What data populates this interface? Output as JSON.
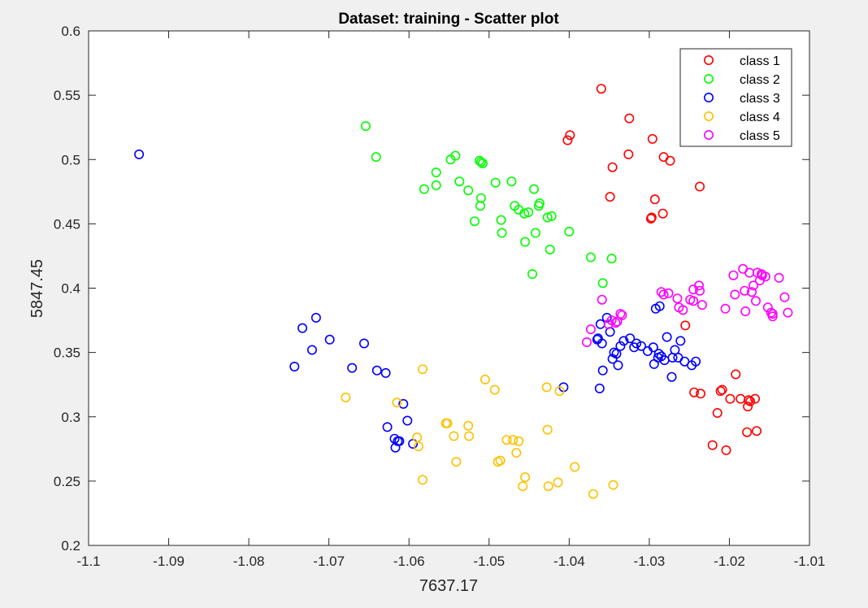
{
  "chart_data": {
    "type": "scatter",
    "title": "Dataset: training - Scatter plot",
    "xlabel": "7637.17",
    "ylabel": "5847.45",
    "xlim": [
      -1.1,
      -1.01
    ],
    "ylim": [
      0.2,
      0.6
    ],
    "xticks": [
      -1.1,
      -1.09,
      -1.08,
      -1.07,
      -1.06,
      -1.05,
      -1.04,
      -1.03,
      -1.02,
      -1.01
    ],
    "yticks": [
      0.2,
      0.25,
      0.3,
      0.35,
      0.4,
      0.45,
      0.5,
      0.55,
      0.6
    ],
    "xtick_labels": [
      "-1.1",
      "-1.09",
      "-1.08",
      "-1.07",
      "-1.06",
      "-1.05",
      "-1.04",
      "-1.03",
      "-1.02",
      "-1.01"
    ],
    "ytick_labels": [
      "0.2",
      "0.25",
      "0.3",
      "0.35",
      "0.4",
      "0.45",
      "0.5",
      "0.55",
      "0.6"
    ],
    "grid": false,
    "legend_position": "top-right",
    "series": [
      {
        "name": "class 1",
        "color": "#ff0000",
        "x": [
          -1.036,
          -1.0399,
          -1.0402,
          -1.0296,
          -1.0325,
          -1.0346,
          -1.0326,
          -1.0297,
          -1.0282,
          -1.0274,
          -1.0237,
          -1.0349,
          -1.0293,
          -1.0283,
          -1.0298,
          -1.0255,
          -1.0192,
          -1.0211,
          -1.0209,
          -1.0199,
          -1.0186,
          -1.0174,
          -1.0177,
          -1.0176,
          -1.0168,
          -1.0215,
          -1.0221,
          -1.0178,
          -1.0166,
          -1.0204,
          -1.0244,
          -1.0236
        ],
        "y": [
          0.555,
          0.519,
          0.515,
          0.516,
          0.532,
          0.494,
          0.504,
          0.455,
          0.502,
          0.499,
          0.479,
          0.471,
          0.469,
          0.458,
          0.454,
          0.371,
          0.333,
          0.32,
          0.321,
          0.314,
          0.314,
          0.312,
          0.308,
          0.313,
          0.314,
          0.303,
          0.278,
          0.288,
          0.289,
          0.274,
          0.319,
          0.318
        ]
      },
      {
        "name": "class 2",
        "color": "#00ff00",
        "x": [
          -1.0654,
          -1.0641,
          -1.0581,
          -1.0566,
          -1.0566,
          -1.0548,
          -1.0542,
          -1.0537,
          -1.0526,
          -1.0512,
          -1.051,
          -1.0508,
          -1.051,
          -1.0492,
          -1.0511,
          -1.0518,
          -1.0485,
          -1.0472,
          -1.0468,
          -1.0463,
          -1.0456,
          -1.0444,
          -1.0451,
          -1.0437,
          -1.0438,
          -1.0427,
          -1.0422,
          -1.0484,
          -1.0455,
          -1.0442,
          -1.0424,
          -1.0446,
          -1.04,
          -1.0373,
          -1.0358,
          -1.0347
        ],
        "y": [
          0.526,
          0.502,
          0.477,
          0.49,
          0.48,
          0.5,
          0.503,
          0.483,
          0.476,
          0.499,
          0.498,
          0.497,
          0.47,
          0.482,
          0.464,
          0.452,
          0.453,
          0.483,
          0.464,
          0.461,
          0.458,
          0.477,
          0.459,
          0.466,
          0.464,
          0.455,
          0.456,
          0.443,
          0.436,
          0.443,
          0.43,
          0.411,
          0.444,
          0.424,
          0.404,
          0.423
        ]
      },
      {
        "name": "class 3",
        "color": "#0000ff",
        "x": [
          -1.0937,
          -1.0716,
          -1.0733,
          -1.0721,
          -1.0743,
          -1.0699,
          -1.0656,
          -1.0671,
          -1.064,
          -1.0629,
          -1.0607,
          -1.0602,
          -1.0627,
          -1.0618,
          -1.0614,
          -1.0617,
          -1.0612,
          -1.0595,
          -1.0407,
          -1.0364,
          -1.0365,
          -1.0359,
          -1.0353,
          -1.0349,
          -1.0346,
          -1.0344,
          -1.0341,
          -1.0339,
          -1.0336,
          -1.0332,
          -1.0324,
          -1.0319,
          -1.0316,
          -1.031,
          -1.0302,
          -1.0295,
          -1.0289,
          -1.0285,
          -1.0281,
          -1.0278,
          -1.0271,
          -1.0268,
          -1.0264,
          -1.0261,
          -1.0256,
          -1.0247,
          -1.0242,
          -1.0361,
          -1.0358,
          -1.0292,
          -1.0287,
          -1.0294,
          -1.0288,
          -1.0272,
          -1.0362
        ],
        "y": [
          0.504,
          0.377,
          0.369,
          0.352,
          0.339,
          0.36,
          0.357,
          0.338,
          0.336,
          0.334,
          0.31,
          0.297,
          0.292,
          0.283,
          0.281,
          0.276,
          0.281,
          0.279,
          0.323,
          0.361,
          0.36,
          0.357,
          0.377,
          0.366,
          0.345,
          0.35,
          0.349,
          0.34,
          0.355,
          0.359,
          0.361,
          0.354,
          0.357,
          0.355,
          0.351,
          0.354,
          0.346,
          0.347,
          0.344,
          0.362,
          0.346,
          0.352,
          0.346,
          0.359,
          0.343,
          0.34,
          0.343,
          0.372,
          0.336,
          0.384,
          0.386,
          0.341,
          0.349,
          0.331,
          0.322
        ]
      },
      {
        "name": "class 4",
        "color": "#ffc000",
        "x": [
          -1.0679,
          -1.0615,
          -1.0583,
          -1.0588,
          -1.059,
          -1.0583,
          -1.0552,
          -1.0554,
          -1.0544,
          -1.0541,
          -1.0525,
          -1.0526,
          -1.0505,
          -1.0493,
          -1.0489,
          -1.0486,
          -1.0478,
          -1.047,
          -1.0466,
          -1.0463,
          -1.0458,
          -1.0455,
          -1.0427,
          -1.0426,
          -1.0414,
          -1.0412,
          -1.0428,
          -1.0393,
          -1.037,
          -1.0345
        ],
        "y": [
          0.315,
          0.311,
          0.337,
          0.277,
          0.284,
          0.251,
          0.295,
          0.295,
          0.285,
          0.265,
          0.285,
          0.293,
          0.329,
          0.321,
          0.265,
          0.266,
          0.282,
          0.282,
          0.272,
          0.281,
          0.246,
          0.253,
          0.29,
          0.246,
          0.249,
          0.32,
          0.323,
          0.261,
          0.24,
          0.247
        ]
      },
      {
        "name": "class 5",
        "color": "#ff00ff",
        "x": [
          -1.0378,
          -1.0373,
          -1.0359,
          -1.0351,
          -1.0347,
          -1.0342,
          -1.034,
          -1.0336,
          -1.0334,
          -1.0285,
          -1.0282,
          -1.0276,
          -1.0265,
          -1.0263,
          -1.0258,
          -1.0249,
          -1.0238,
          -1.0234,
          -1.0237,
          -1.0245,
          -1.0205,
          -1.0195,
          -1.0181,
          -1.0183,
          -1.0175,
          -1.0172,
          -1.017,
          -1.0167,
          -1.0165,
          -1.0162,
          -1.016,
          -1.0155,
          -1.0152,
          -1.0146,
          -1.0148,
          -1.0146,
          -1.0138,
          -1.0131,
          -1.0127,
          -1.0193,
          -1.018,
          -1.0245,
          -1.0159
        ],
        "y": [
          0.358,
          0.368,
          0.391,
          0.372,
          0.375,
          0.373,
          0.374,
          0.38,
          0.379,
          0.397,
          0.395,
          0.396,
          0.392,
          0.385,
          0.383,
          0.391,
          0.402,
          0.387,
          0.398,
          0.39,
          0.384,
          0.41,
          0.398,
          0.415,
          0.412,
          0.397,
          0.402,
          0.39,
          0.412,
          0.406,
          0.411,
          0.409,
          0.385,
          0.38,
          0.381,
          0.378,
          0.408,
          0.393,
          0.381,
          0.395,
          0.382,
          0.399,
          0.41
        ]
      }
    ]
  }
}
